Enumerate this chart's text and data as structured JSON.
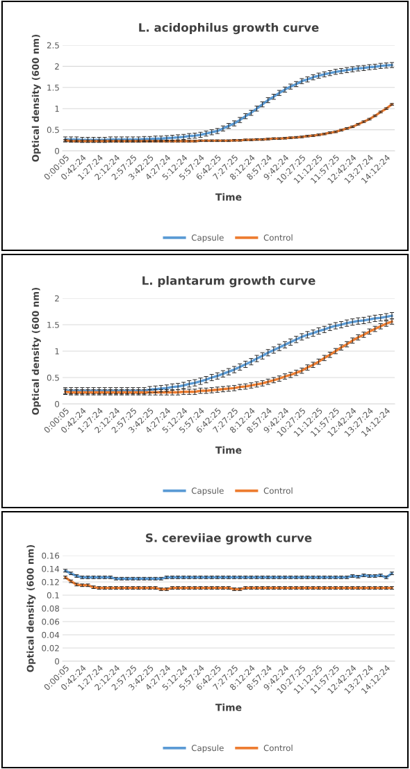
{
  "chart_data": [
    {
      "type": "line",
      "title": "L. acidophilus growth curve",
      "xlabel": "Time",
      "ylabel": "Optical density (600 nm)",
      "categories": [
        "0:00:05",
        null,
        null,
        "0:42:24",
        null,
        null,
        "1:27:24",
        null,
        null,
        "2:12:24",
        null,
        null,
        "2:57:25",
        null,
        null,
        "3:42:25",
        null,
        null,
        "4:27:24",
        null,
        null,
        "5:12:24",
        null,
        null,
        "5:57:24",
        null,
        null,
        "6:42:25",
        null,
        null,
        "7:27:25",
        null,
        null,
        "8:12:24",
        null,
        null,
        "8:57:24",
        null,
        null,
        "9:42:24",
        null,
        null,
        "10:27:25",
        null,
        null,
        "11:12:25",
        null,
        null,
        "11:57:25",
        null,
        null,
        "12:42:24",
        null,
        null,
        "13:27:24",
        null,
        null,
        "14:12:24",
        null
      ],
      "series": [
        {
          "name": "Capsule",
          "color": "#5b9bd5",
          "values": [
            0.27,
            0.27,
            0.27,
            0.26,
            0.26,
            0.26,
            0.26,
            0.26,
            0.27,
            0.27,
            0.27,
            0.27,
            0.27,
            0.27,
            0.28,
            0.28,
            0.29,
            0.29,
            0.3,
            0.31,
            0.32,
            0.33,
            0.35,
            0.36,
            0.38,
            0.41,
            0.44,
            0.47,
            0.53,
            0.59,
            0.65,
            0.73,
            0.82,
            0.9,
            1.0,
            1.1,
            1.2,
            1.28,
            1.37,
            1.45,
            1.52,
            1.58,
            1.65,
            1.69,
            1.74,
            1.78,
            1.81,
            1.84,
            1.87,
            1.89,
            1.91,
            1.93,
            1.95,
            1.96,
            1.98,
            1.99,
            2.01,
            2.02,
            2.03
          ],
          "errors": [
            0.06,
            0.06,
            0.06,
            0.06,
            0.06,
            0.06,
            0.06,
            0.06,
            0.06,
            0.06,
            0.06,
            0.06,
            0.06,
            0.06,
            0.06,
            0.06,
            0.06,
            0.06,
            0.06,
            0.06,
            0.06,
            0.06,
            0.06,
            0.06,
            0.06,
            0.06,
            0.06,
            0.06,
            0.06,
            0.06,
            0.06,
            0.06,
            0.06,
            0.06,
            0.06,
            0.06,
            0.06,
            0.06,
            0.06,
            0.06,
            0.06,
            0.06,
            0.06,
            0.06,
            0.06,
            0.06,
            0.06,
            0.06,
            0.06,
            0.06,
            0.06,
            0.06,
            0.06,
            0.06,
            0.06,
            0.06,
            0.06,
            0.06,
            0.06
          ]
        },
        {
          "name": "Control",
          "color": "#ed7d31",
          "values": [
            0.25,
            0.23,
            0.23,
            0.23,
            0.23,
            0.23,
            0.23,
            0.23,
            0.23,
            0.23,
            0.23,
            0.23,
            0.23,
            0.23,
            0.23,
            0.23,
            0.23,
            0.23,
            0.23,
            0.23,
            0.23,
            0.23,
            0.23,
            0.23,
            0.24,
            0.24,
            0.24,
            0.24,
            0.24,
            0.24,
            0.25,
            0.25,
            0.26,
            0.26,
            0.27,
            0.27,
            0.28,
            0.29,
            0.29,
            0.3,
            0.31,
            0.32,
            0.33,
            0.35,
            0.36,
            0.38,
            0.4,
            0.43,
            0.45,
            0.49,
            0.53,
            0.57,
            0.63,
            0.69,
            0.75,
            0.83,
            0.92,
            1.0,
            1.1
          ],
          "errors": [
            0.02,
            0.02,
            0.02,
            0.02,
            0.02,
            0.02,
            0.02,
            0.02,
            0.02,
            0.02,
            0.02,
            0.02,
            0.02,
            0.02,
            0.02,
            0.02,
            0.02,
            0.02,
            0.02,
            0.02,
            0.02,
            0.02,
            0.02,
            0.02,
            0.02,
            0.02,
            0.02,
            0.02,
            0.02,
            0.02,
            0.02,
            0.02,
            0.02,
            0.02,
            0.02,
            0.02,
            0.02,
            0.02,
            0.02,
            0.02,
            0.02,
            0.02,
            0.02,
            0.02,
            0.02,
            0.02,
            0.02,
            0.02,
            0.02,
            0.02,
            0.02,
            0.02,
            0.02,
            0.02,
            0.02,
            0.02,
            0.02,
            0.02,
            0.02
          ]
        }
      ],
      "ylim": [
        0,
        2.5
      ],
      "yticks": [
        0,
        0.5,
        1,
        1.5,
        2,
        2.5
      ],
      "grid": "y",
      "legend": "bottom",
      "marker": "none",
      "line_style": "solid"
    },
    {
      "type": "line",
      "title": "L. plantarum growth curve",
      "xlabel": "Time",
      "ylabel": "Optical density (600 nm)",
      "categories": [
        "0:00:05",
        null,
        null,
        "0:42:24",
        null,
        null,
        "1:27:24",
        null,
        null,
        "2:12:24",
        null,
        null,
        "2:57:25",
        null,
        null,
        "3:42:25",
        null,
        null,
        "4:27:24",
        null,
        null,
        "5:12:24",
        null,
        null,
        "5:57:24",
        null,
        null,
        "6:42:25",
        null,
        null,
        "7:27:25",
        null,
        null,
        "8:12:24",
        null,
        null,
        "8:57:24",
        null,
        null,
        "9:42:24",
        null,
        null,
        "10:27:25",
        null,
        null,
        "11:12:25",
        null,
        null,
        "11:57:25",
        null,
        null,
        "12:42:24",
        null,
        null,
        "13:27:24",
        null,
        null,
        "14:12:24",
        null
      ],
      "series": [
        {
          "name": "Capsule",
          "color": "#5b9bd5",
          "values": [
            0.25,
            0.25,
            0.25,
            0.25,
            0.25,
            0.25,
            0.25,
            0.25,
            0.25,
            0.25,
            0.25,
            0.25,
            0.25,
            0.25,
            0.25,
            0.27,
            0.28,
            0.29,
            0.3,
            0.32,
            0.33,
            0.35,
            0.38,
            0.4,
            0.43,
            0.46,
            0.5,
            0.53,
            0.57,
            0.61,
            0.65,
            0.7,
            0.75,
            0.8,
            0.86,
            0.91,
            0.97,
            1.02,
            1.07,
            1.12,
            1.17,
            1.22,
            1.27,
            1.31,
            1.34,
            1.38,
            1.41,
            1.45,
            1.48,
            1.5,
            1.53,
            1.55,
            1.57,
            1.58,
            1.6,
            1.62,
            1.63,
            1.65,
            1.67
          ],
          "errors": [
            0.06,
            0.06,
            0.06,
            0.06,
            0.06,
            0.06,
            0.06,
            0.06,
            0.06,
            0.06,
            0.06,
            0.06,
            0.06,
            0.06,
            0.06,
            0.06,
            0.06,
            0.06,
            0.06,
            0.06,
            0.06,
            0.06,
            0.06,
            0.06,
            0.06,
            0.06,
            0.06,
            0.06,
            0.06,
            0.06,
            0.06,
            0.06,
            0.06,
            0.06,
            0.06,
            0.06,
            0.06,
            0.06,
            0.06,
            0.06,
            0.06,
            0.06,
            0.06,
            0.06,
            0.06,
            0.06,
            0.06,
            0.06,
            0.06,
            0.06,
            0.06,
            0.06,
            0.06,
            0.06,
            0.06,
            0.06,
            0.06,
            0.06,
            0.06
          ]
        },
        {
          "name": "Control",
          "color": "#ed7d31",
          "values": [
            0.23,
            0.22,
            0.22,
            0.22,
            0.22,
            0.22,
            0.22,
            0.22,
            0.22,
            0.22,
            0.22,
            0.22,
            0.22,
            0.22,
            0.22,
            0.22,
            0.22,
            0.22,
            0.22,
            0.22,
            0.22,
            0.23,
            0.23,
            0.23,
            0.25,
            0.25,
            0.26,
            0.27,
            0.28,
            0.29,
            0.3,
            0.32,
            0.33,
            0.35,
            0.37,
            0.39,
            0.42,
            0.45,
            0.48,
            0.52,
            0.55,
            0.59,
            0.63,
            0.69,
            0.74,
            0.8,
            0.87,
            0.93,
            1.0,
            1.07,
            1.13,
            1.2,
            1.26,
            1.31,
            1.37,
            1.42,
            1.47,
            1.52,
            1.56
          ],
          "errors": [
            0.05,
            0.05,
            0.05,
            0.05,
            0.05,
            0.05,
            0.05,
            0.05,
            0.05,
            0.05,
            0.05,
            0.05,
            0.05,
            0.05,
            0.05,
            0.05,
            0.05,
            0.05,
            0.05,
            0.05,
            0.05,
            0.05,
            0.05,
            0.05,
            0.05,
            0.05,
            0.05,
            0.05,
            0.05,
            0.05,
            0.05,
            0.05,
            0.05,
            0.05,
            0.05,
            0.05,
            0.05,
            0.05,
            0.05,
            0.05,
            0.05,
            0.05,
            0.05,
            0.05,
            0.05,
            0.05,
            0.05,
            0.05,
            0.05,
            0.05,
            0.05,
            0.05,
            0.05,
            0.05,
            0.05,
            0.05,
            0.05,
            0.05,
            0.05
          ]
        }
      ],
      "ylim": [
        0,
        2
      ],
      "yticks": [
        0,
        0.5,
        1,
        1.5,
        2
      ],
      "grid": "y",
      "legend": "bottom",
      "marker": "none",
      "line_style": "solid"
    },
    {
      "type": "line",
      "title": "S. cereviiae growth curve",
      "xlabel": "Time",
      "ylabel": "Optical density (600 nm)",
      "categories": [
        "0:00:05",
        null,
        null,
        "0:42:24",
        null,
        null,
        "1:27:24",
        null,
        null,
        "2:12:24",
        null,
        null,
        "2:57:25",
        null,
        null,
        "3:42:25",
        null,
        null,
        "4:27:24",
        null,
        null,
        "5:12:24",
        null,
        null,
        "5:57:24",
        null,
        null,
        "6:42:25",
        null,
        null,
        "7:27:25",
        null,
        null,
        "8:12:24",
        null,
        null,
        "8:57:24",
        null,
        null,
        "9:42:24",
        null,
        null,
        "10:27:25",
        null,
        null,
        "11:12:25",
        null,
        null,
        "11:57:25",
        null,
        null,
        "12:42:24",
        null,
        null,
        "13:27:24",
        null,
        null,
        "14:12:24",
        null
      ],
      "series": [
        {
          "name": "Capsule",
          "color": "#5b9bd5",
          "values": [
            0.137,
            0.133,
            0.129,
            0.127,
            0.127,
            0.127,
            0.127,
            0.127,
            0.127,
            0.125,
            0.125,
            0.125,
            0.125,
            0.125,
            0.125,
            0.125,
            0.125,
            0.125,
            0.127,
            0.127,
            0.127,
            0.127,
            0.127,
            0.127,
            0.127,
            0.127,
            0.127,
            0.127,
            0.127,
            0.127,
            0.127,
            0.127,
            0.127,
            0.127,
            0.127,
            0.127,
            0.127,
            0.127,
            0.127,
            0.127,
            0.127,
            0.127,
            0.127,
            0.127,
            0.127,
            0.127,
            0.127,
            0.127,
            0.127,
            0.127,
            0.127,
            0.129,
            0.128,
            0.13,
            0.129,
            0.129,
            0.13,
            0.127,
            0.133
          ],
          "errors": [
            0.002,
            0.002,
            0.002,
            0.002,
            0.002,
            0.002,
            0.002,
            0.002,
            0.002,
            0.002,
            0.002,
            0.002,
            0.002,
            0.002,
            0.002,
            0.002,
            0.002,
            0.002,
            0.002,
            0.002,
            0.002,
            0.002,
            0.002,
            0.002,
            0.002,
            0.002,
            0.002,
            0.002,
            0.002,
            0.002,
            0.002,
            0.002,
            0.002,
            0.002,
            0.002,
            0.002,
            0.002,
            0.002,
            0.002,
            0.002,
            0.002,
            0.002,
            0.002,
            0.002,
            0.002,
            0.002,
            0.002,
            0.002,
            0.002,
            0.002,
            0.002,
            0.002,
            0.002,
            0.002,
            0.002,
            0.002,
            0.002,
            0.002,
            0.002
          ]
        },
        {
          "name": "Control",
          "color": "#ed7d31",
          "values": [
            0.127,
            0.121,
            0.116,
            0.115,
            0.115,
            0.112,
            0.111,
            0.111,
            0.111,
            0.111,
            0.111,
            0.111,
            0.111,
            0.111,
            0.111,
            0.111,
            0.111,
            0.109,
            0.109,
            0.111,
            0.111,
            0.111,
            0.111,
            0.111,
            0.111,
            0.111,
            0.111,
            0.111,
            0.111,
            0.111,
            0.109,
            0.109,
            0.111,
            0.111,
            0.111,
            0.111,
            0.111,
            0.111,
            0.111,
            0.111,
            0.111,
            0.111,
            0.111,
            0.111,
            0.111,
            0.111,
            0.111,
            0.111,
            0.111,
            0.111,
            0.111,
            0.111,
            0.111,
            0.111,
            0.111,
            0.111,
            0.111,
            0.111,
            0.111
          ],
          "errors": [
            0.002,
            0.002,
            0.002,
            0.002,
            0.002,
            0.002,
            0.002,
            0.002,
            0.002,
            0.002,
            0.002,
            0.002,
            0.002,
            0.002,
            0.002,
            0.002,
            0.002,
            0.002,
            0.002,
            0.002,
            0.002,
            0.002,
            0.002,
            0.002,
            0.002,
            0.002,
            0.002,
            0.002,
            0.002,
            0.002,
            0.002,
            0.002,
            0.002,
            0.002,
            0.002,
            0.002,
            0.002,
            0.002,
            0.002,
            0.002,
            0.002,
            0.002,
            0.002,
            0.002,
            0.002,
            0.002,
            0.002,
            0.002,
            0.002,
            0.002,
            0.002,
            0.002,
            0.002,
            0.002,
            0.002,
            0.002,
            0.002,
            0.002,
            0.002
          ]
        }
      ],
      "ylim": [
        0,
        0.16
      ],
      "yticks": [
        0,
        0.02,
        0.04,
        0.06,
        0.08,
        0.1,
        0.12,
        0.14,
        0.16
      ],
      "grid": "y",
      "legend": "bottom",
      "marker": "none",
      "line_style": "solid"
    }
  ]
}
